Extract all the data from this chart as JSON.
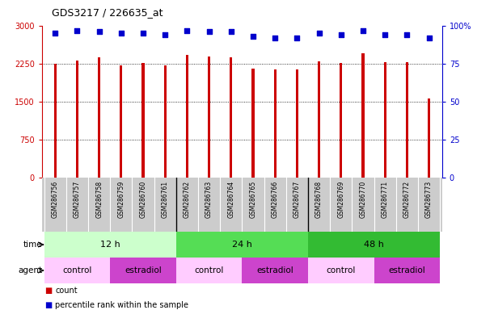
{
  "title": "GDS3217 / 226635_at",
  "samples": [
    "GSM286756",
    "GSM286757",
    "GSM286758",
    "GSM286759",
    "GSM286760",
    "GSM286761",
    "GSM286762",
    "GSM286763",
    "GSM286764",
    "GSM286765",
    "GSM286766",
    "GSM286767",
    "GSM286768",
    "GSM286769",
    "GSM286770",
    "GSM286771",
    "GSM286772",
    "GSM286773"
  ],
  "counts": [
    2250,
    2310,
    2370,
    2210,
    2260,
    2210,
    2420,
    2390,
    2370,
    2150,
    2130,
    2130,
    2300,
    2270,
    2450,
    2280,
    2280,
    1570
  ],
  "percentiles": [
    95,
    97,
    96,
    95,
    95,
    94,
    97,
    96,
    96,
    93,
    92,
    92,
    95,
    94,
    97,
    94,
    94,
    92
  ],
  "bar_color": "#cc0000",
  "dot_color": "#0000cc",
  "ylim_left": [
    0,
    3000
  ],
  "ylim_right": [
    0,
    100
  ],
  "yticks_left": [
    0,
    750,
    1500,
    2250,
    3000
  ],
  "yticks_right": [
    0,
    25,
    50,
    75,
    100
  ],
  "yticklabels_right": [
    "0",
    "25",
    "50",
    "75",
    "100%"
  ],
  "background_color": "#ffffff",
  "plot_bg_color": "#ffffff",
  "time_groups": [
    {
      "label": "12 h",
      "start": 0,
      "end": 6,
      "color": "#ccffcc"
    },
    {
      "label": "24 h",
      "start": 6,
      "end": 12,
      "color": "#55dd55"
    },
    {
      "label": "48 h",
      "start": 12,
      "end": 18,
      "color": "#33bb33"
    }
  ],
  "agent_groups": [
    {
      "label": "control",
      "start": 0,
      "end": 3,
      "color": "#ffccff"
    },
    {
      "label": "estradiol",
      "start": 3,
      "end": 6,
      "color": "#cc44cc"
    },
    {
      "label": "control",
      "start": 6,
      "end": 9,
      "color": "#ffccff"
    },
    {
      "label": "estradiol",
      "start": 9,
      "end": 12,
      "color": "#cc44cc"
    },
    {
      "label": "control",
      "start": 12,
      "end": 15,
      "color": "#ffccff"
    },
    {
      "label": "estradiol",
      "start": 15,
      "end": 18,
      "color": "#cc44cc"
    }
  ],
  "tick_label_area_color": "#cccccc",
  "legend_count_color": "#cc0000",
  "legend_dot_color": "#0000cc",
  "time_label": "time",
  "agent_label": "agent",
  "legend_count_text": "count",
  "legend_pct_text": "percentile rank within the sample"
}
